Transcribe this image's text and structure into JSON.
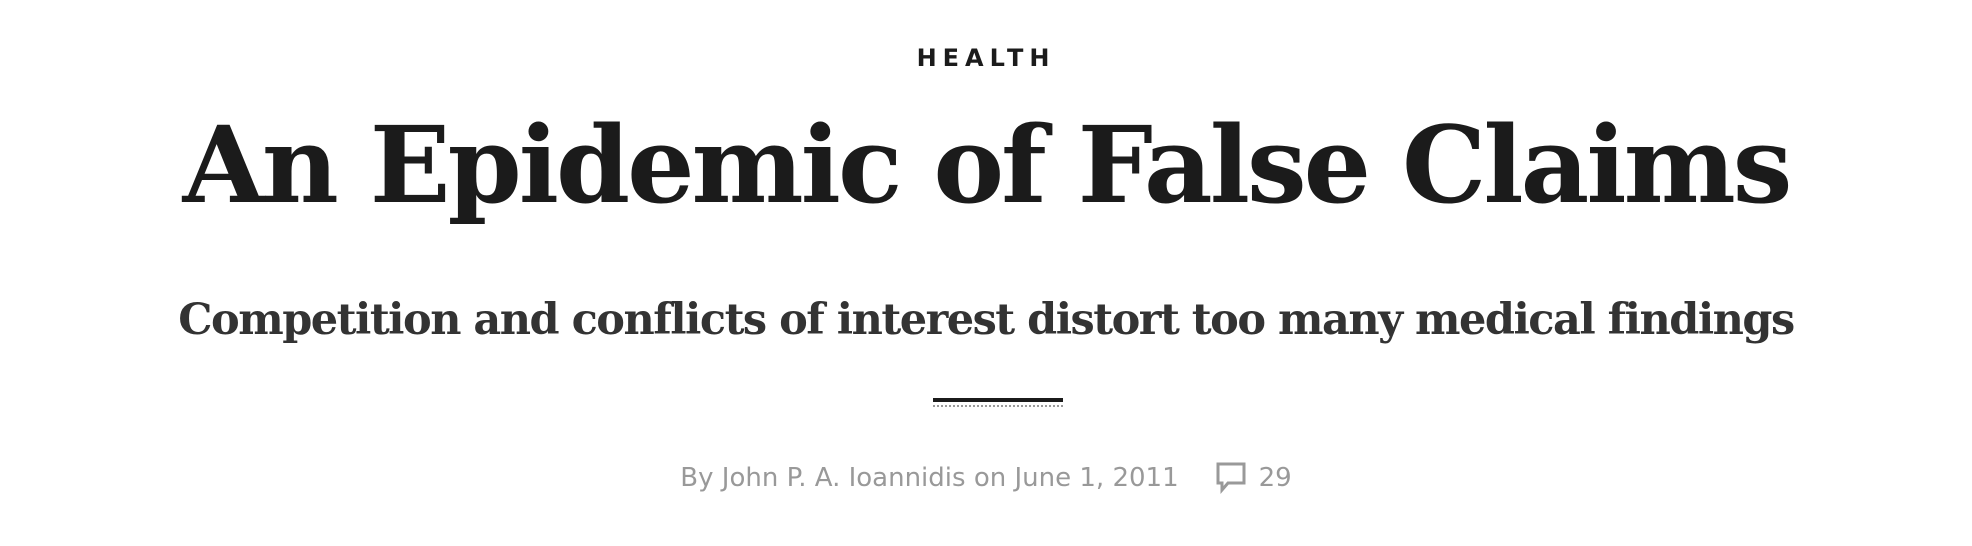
{
  "article": {
    "section": "HEALTH",
    "headline": "An Epidemic of False Claims",
    "dek": "Competition and conflicts of interest distort too many medical findings",
    "byline": {
      "prefix": "By",
      "author": "John P. A. Ioannidis",
      "date_prefix": "on",
      "date": "June 1, 2011"
    },
    "comments": {
      "icon": "speech-bubble-icon",
      "count": "29"
    }
  },
  "colors": {
    "text": "#1b1b1b",
    "dek": "#333333",
    "meta": "#999999"
  }
}
